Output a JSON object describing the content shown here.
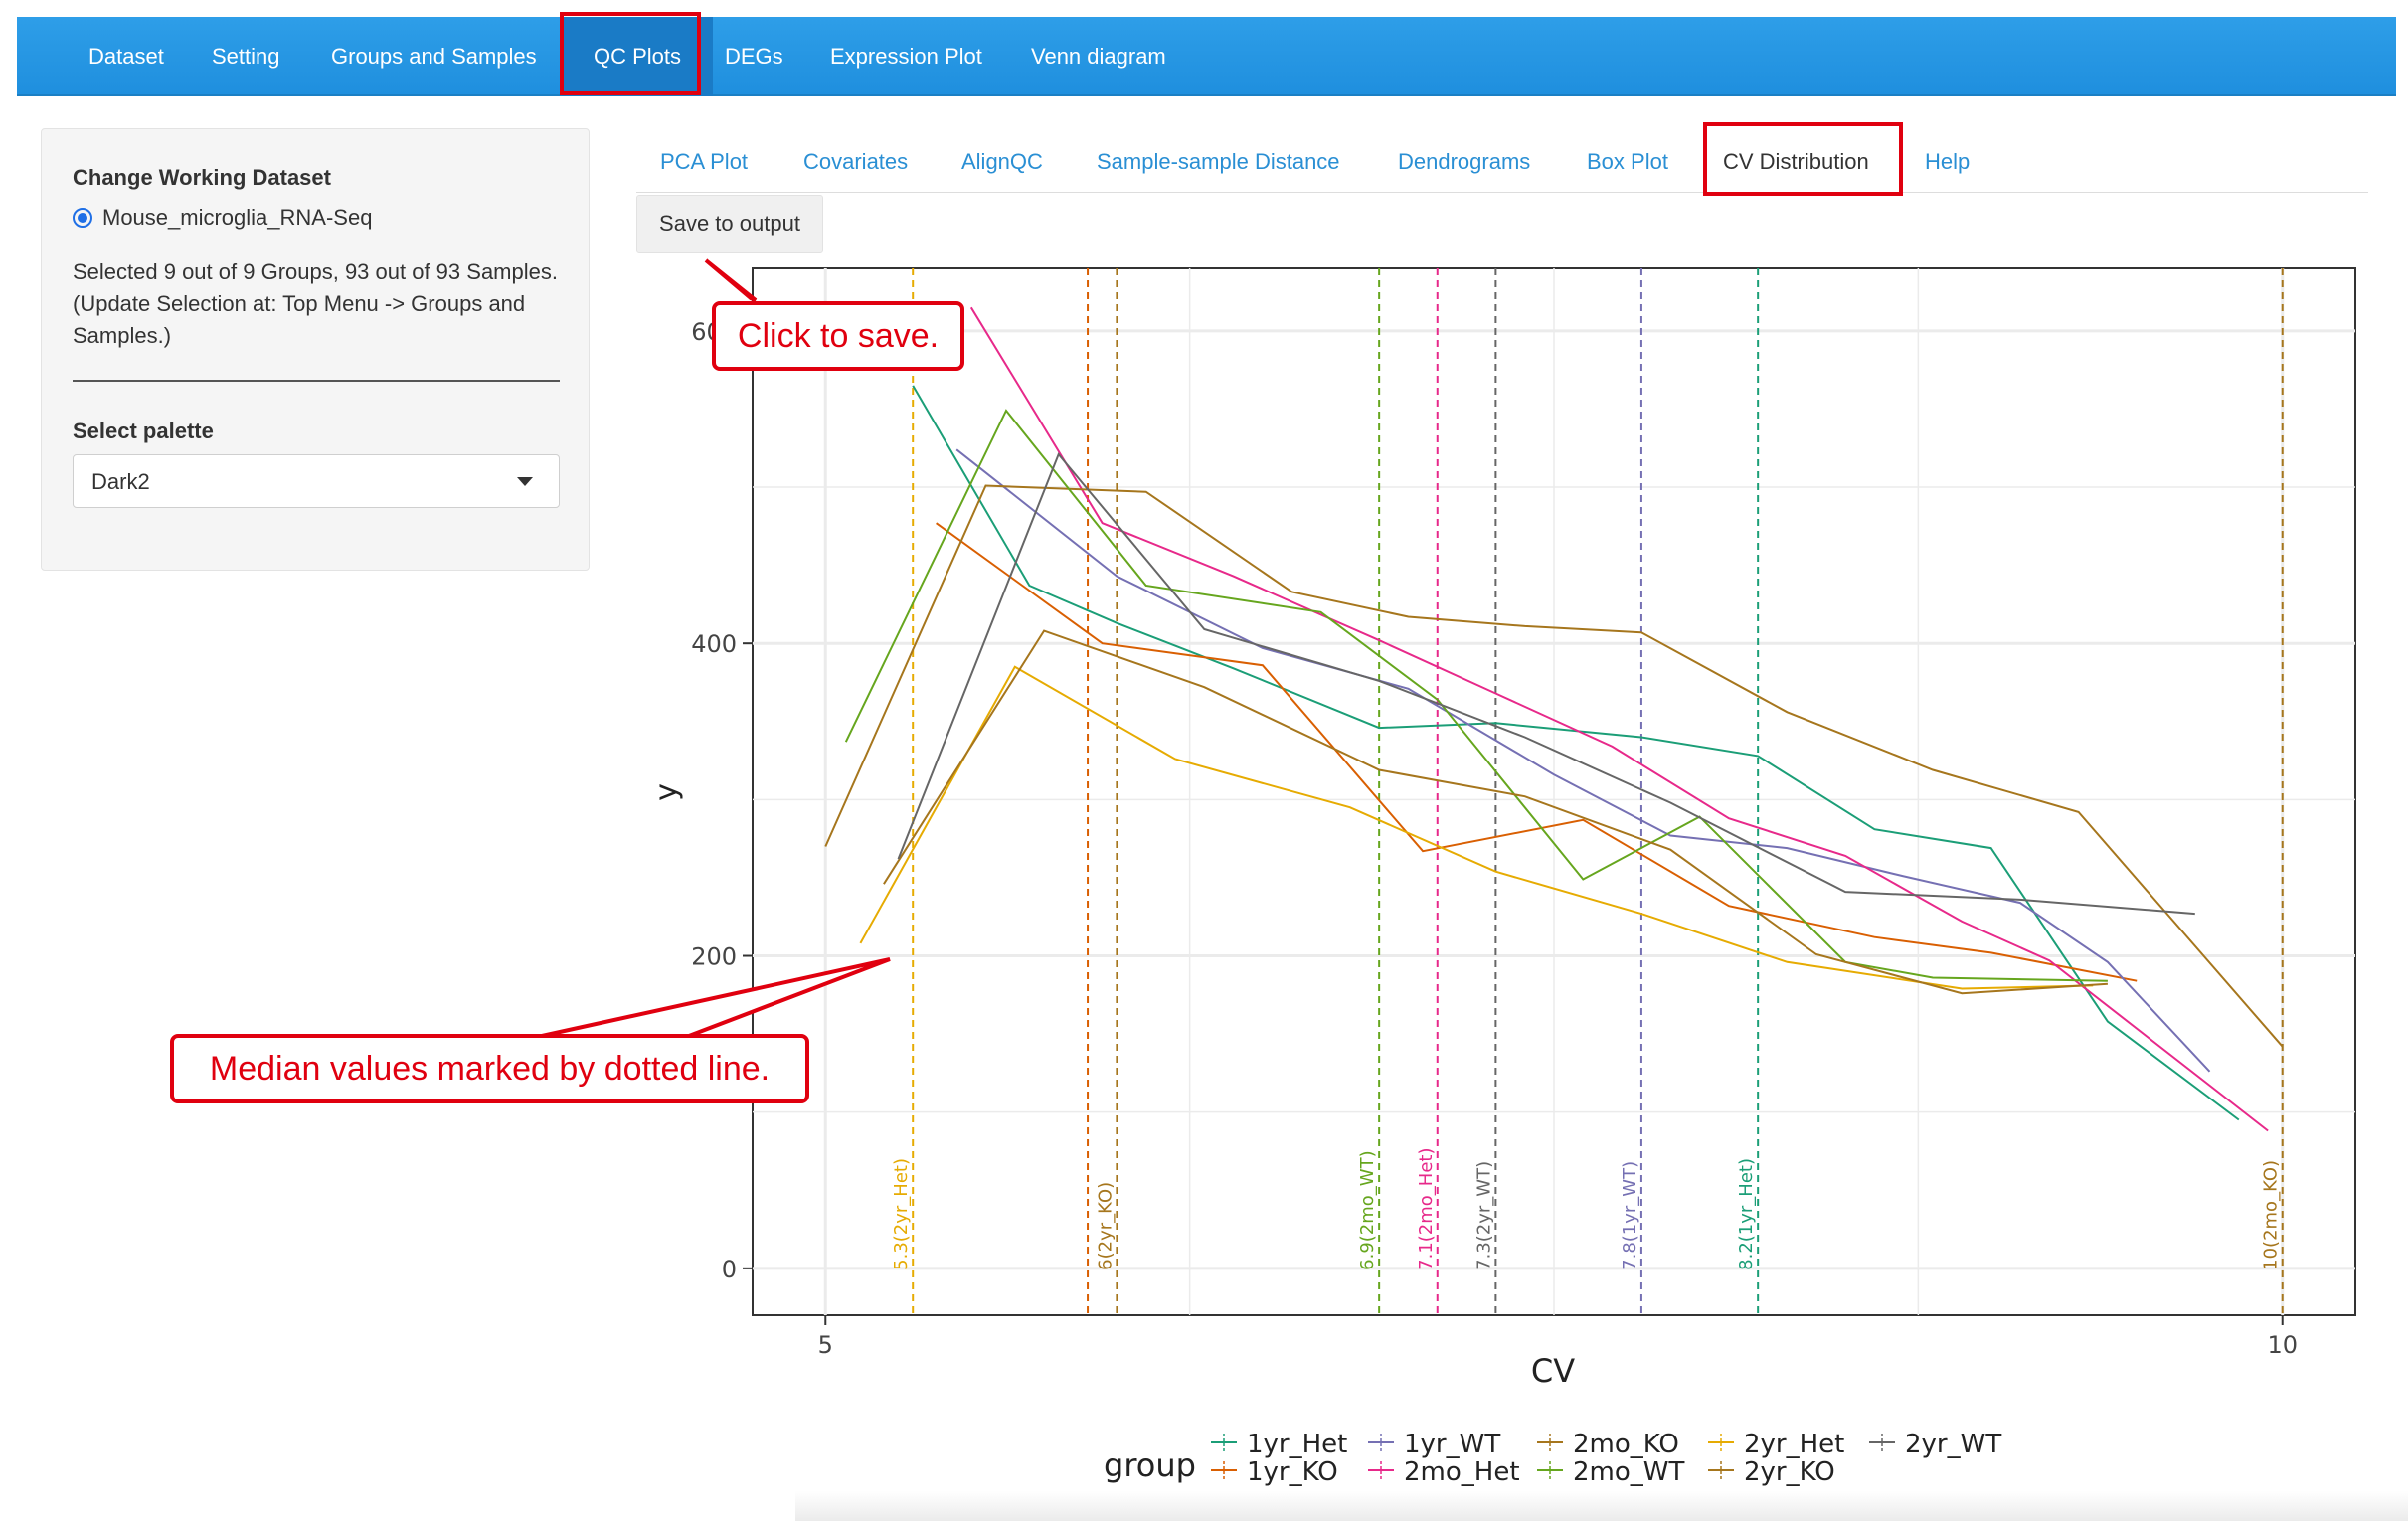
{
  "navbar": {
    "items": [
      {
        "label": "Dataset"
      },
      {
        "label": "Setting"
      },
      {
        "label": "Groups and Samples"
      },
      {
        "label": "QC Plots"
      },
      {
        "label": "DEGs"
      },
      {
        "label": "Expression Plot"
      },
      {
        "label": "Venn diagram"
      }
    ],
    "active": "QC Plots"
  },
  "sidebar": {
    "dataset_label": "Change Working Dataset",
    "dataset_option": "Mouse_microglia_RNA-Seq",
    "selection_text": "Selected 9 out of 9 Groups, 93 out of 93 Samples. (Update Selection at: Top Menu -> Groups and Samples.)",
    "palette_label": "Select palette",
    "palette_value": "Dark2"
  },
  "subtabs": {
    "items": [
      {
        "label": "PCA Plot"
      },
      {
        "label": "Covariates"
      },
      {
        "label": "AlignQC"
      },
      {
        "label": "Sample-sample Distance"
      },
      {
        "label": "Dendrograms"
      },
      {
        "label": "Box Plot"
      },
      {
        "label": "CV Distribution"
      },
      {
        "label": "Help"
      }
    ],
    "active": "CV Distribution",
    "save_label": "Save to output"
  },
  "annotations": {
    "save_callout": "Click to save.",
    "median_callout": "Median values marked by dotted line.",
    "highlight_color": "#e0000f"
  },
  "colors": {
    "navbar": "#1f8fde",
    "tab_link": "#2a8fd4"
  },
  "chart_data": {
    "type": "line",
    "xlabel": "CV",
    "ylabel": "y",
    "xlim": [
      4.75,
      10.25
    ],
    "ylim": [
      -30,
      640
    ],
    "xticks": [
      5,
      10
    ],
    "yticks": [
      0,
      200,
      400,
      600
    ],
    "grid": true,
    "legend": {
      "title": "group",
      "placement": "bottom"
    },
    "series": [
      {
        "name": "1yr_Het",
        "color": "#1B9E77",
        "median": 8.2,
        "median_label": "8.2(1yr_Het)",
        "x": [
          5.3,
          5.7,
          6.0,
          6.4,
          6.9,
          7.3,
          7.8,
          8.2,
          8.6,
          9.0,
          9.4,
          9.85
        ],
        "y": [
          565,
          437,
          413,
          384,
          346,
          349,
          340,
          328,
          281,
          269,
          158,
          95
        ]
      },
      {
        "name": "1yr_KO",
        "color": "#D95F02",
        "median": 5.9,
        "median_label": "",
        "x": [
          5.38,
          5.95,
          6.5,
          7.05,
          7.6,
          8.1,
          8.6,
          9.0,
          9.5
        ],
        "y": [
          477,
          400,
          386,
          267,
          287,
          232,
          212,
          202,
          184
        ]
      },
      {
        "name": "1yr_WT",
        "color": "#7570B3",
        "median": 7.8,
        "median_label": "7.8(1yr_WT)",
        "x": [
          5.45,
          6.0,
          6.5,
          7.0,
          7.5,
          7.9,
          8.3,
          8.7,
          9.1,
          9.4,
          9.75
        ],
        "y": [
          524,
          443,
          397,
          371,
          316,
          277,
          269,
          251,
          234,
          196,
          126
        ]
      },
      {
        "name": "2mo_Het",
        "color": "#E7298A",
        "median": 7.1,
        "median_label": "7.1(2mo_Het)",
        "x": [
          5.5,
          5.95,
          6.4,
          6.9,
          7.3,
          7.7,
          8.1,
          8.5,
          8.9,
          9.2,
          9.95
        ],
        "y": [
          615,
          477,
          443,
          402,
          368,
          334,
          288,
          264,
          222,
          197,
          88
        ]
      },
      {
        "name": "2mo_KO",
        "color": "#A6761D",
        "median": 10.0,
        "median_label": "10(2mo_KO)",
        "x": [
          5.0,
          5.55,
          6.1,
          6.6,
          7.0,
          7.4,
          7.8,
          8.3,
          8.8,
          9.3,
          10.0
        ],
        "y": [
          270,
          501,
          497,
          433,
          417,
          411,
          407,
          356,
          319,
          292,
          142
        ]
      },
      {
        "name": "2mo_WT",
        "color": "#66A61E",
        "median": 6.9,
        "median_label": "6.9(2mo_WT)",
        "x": [
          5.07,
          5.62,
          6.1,
          6.7,
          7.1,
          7.6,
          8.0,
          8.5,
          8.8,
          9.4
        ],
        "y": [
          337,
          549,
          437,
          420,
          364,
          249,
          289,
          196,
          186,
          184
        ]
      },
      {
        "name": "2yr_Het",
        "color": "#E6AB02",
        "median": 5.3,
        "median_label": "5.3(2yr_Het)",
        "x": [
          5.12,
          5.65,
          6.2,
          6.8,
          7.3,
          7.8,
          8.3,
          8.9,
          9.35
        ],
        "y": [
          208,
          385,
          326,
          295,
          254,
          227,
          196,
          179,
          181
        ]
      },
      {
        "name": "2yr_KO",
        "color": "#A6761D",
        "median": 6.0,
        "median_label": "6(2yr_KO)",
        "x": [
          5.2,
          5.75,
          6.3,
          6.9,
          7.4,
          7.9,
          8.4,
          8.9,
          9.4
        ],
        "y": [
          246,
          408,
          372,
          319,
          302,
          268,
          201,
          176,
          182
        ]
      },
      {
        "name": "2yr_WT",
        "color": "#666666",
        "median": 7.3,
        "median_label": "7.3(2yr_WT)",
        "x": [
          5.25,
          5.8,
          6.3,
          6.9,
          7.4,
          7.9,
          8.5,
          9.1,
          9.7
        ],
        "y": [
          262,
          521,
          409,
          376,
          340,
          298,
          241,
          236,
          227
        ]
      }
    ]
  }
}
